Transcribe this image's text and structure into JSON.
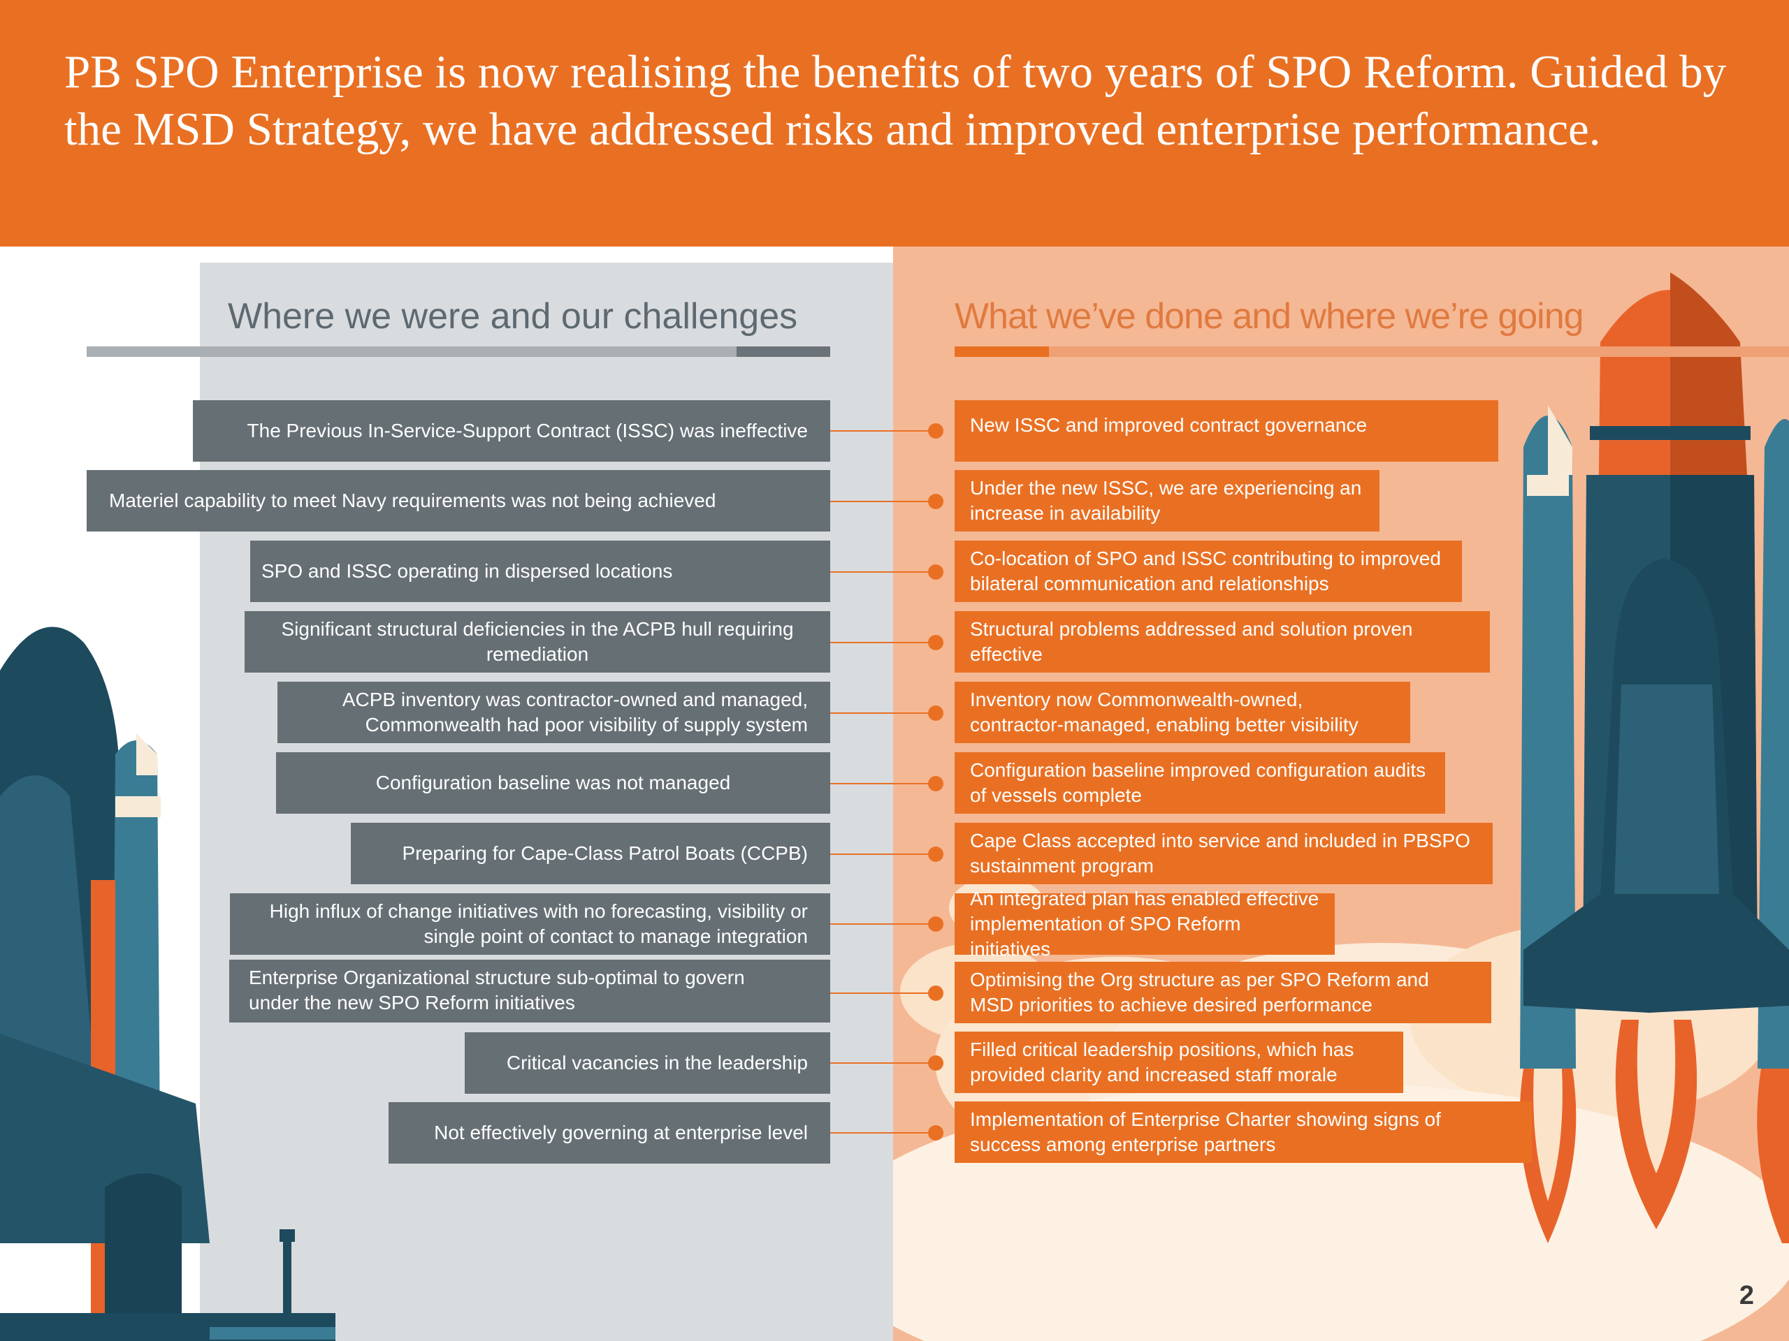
{
  "header": {
    "title": "PB SPO Enterprise is now realising the benefits of two years of SPO Reform. Guided by the MSD Strategy, we have addressed risks and improved enterprise performance."
  },
  "left_column": {
    "title": "Where we were and our challenges"
  },
  "right_column": {
    "title": "What we’ve done and where we’re going"
  },
  "items": [
    {
      "challenge": "The Previous In-Service-Support Contract (ISSC) was ineffective",
      "action": "New ISSC and improved contract governance"
    },
    {
      "challenge": "Materiel capability to meet Navy requirements was not being achieved",
      "action": "Under the new ISSC, we are experiencing an increase in availability"
    },
    {
      "challenge": "SPO and ISSC operating in dispersed locations",
      "action": "Co-location of SPO and ISSC contributing to improved bilateral communication and relationships"
    },
    {
      "challenge": "Significant structural deficiencies in the ACPB hull requiring remediation",
      "action": "Structural problems addressed and solution proven effective"
    },
    {
      "challenge": "ACPB inventory was contractor-owned and managed, Commonwealth had poor visibility of supply system",
      "action": "Inventory now Commonwealth-owned, contractor-managed, enabling better visibility"
    },
    {
      "challenge": "Configuration baseline was not managed",
      "action": "Configuration baseline improved configuration audits of vessels complete"
    },
    {
      "challenge": "Preparing for Cape-Class Patrol Boats (CCPB)",
      "action": "Cape Class accepted into service and included in PBSPO sustainment program"
    },
    {
      "challenge": "High influx of change initiatives with no forecasting, visibility or single point of contact to manage integration",
      "action": "An integrated plan has enabled effective implementation of SPO Reform initiatives"
    },
    {
      "challenge": "Enterprise Organizational structure sub-optimal to govern under the new SPO Reform initiatives",
      "action": "Optimising the Org structure as per SPO Reform and MSD priorities to achieve desired performance"
    },
    {
      "challenge": "Critical vacancies in the leadership",
      "action": "Filled critical leadership positions, which has provided clarity and increased staff morale"
    },
    {
      "challenge": "Not effectively governing at enterprise level",
      "action": "Implementation of Enterprise Charter showing signs of success among enterprise partners"
    }
  ],
  "decor": {
    "left_art": "space-shuttle-on-launch-pad-illustration",
    "right_art": "space-shuttle-lifting-off-illustration"
  },
  "page_number": "2",
  "colors": {
    "brand_orange": "#E97023",
    "left_panel": "#D9DCDF",
    "right_panel": "#F5B895",
    "challenge_box": "#666F74",
    "shuttle_navy": "#1E4A5E"
  }
}
